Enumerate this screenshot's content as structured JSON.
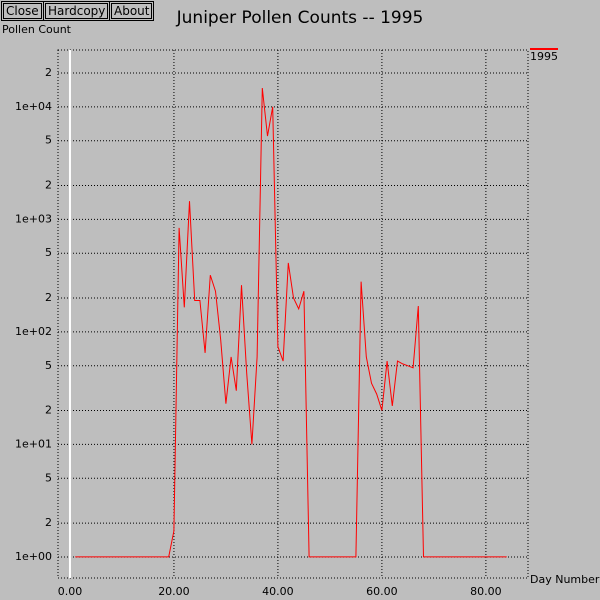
{
  "buttons": [
    "Close",
    "Hardcopy",
    "About"
  ],
  "chart_data": {
    "type": "line",
    "title": "Juniper Pollen Counts -- 1995",
    "y_label": "Pollen Count",
    "x_label": "Day Number",
    "x": [
      1,
      19,
      20,
      21,
      22,
      23,
      24,
      25,
      26,
      27,
      28,
      29,
      30,
      31,
      32,
      33,
      34,
      35,
      36,
      37,
      38,
      39,
      40,
      41,
      42,
      43,
      44,
      45,
      46,
      55,
      56,
      57,
      58,
      59,
      60,
      61,
      62,
      63,
      64,
      65,
      66,
      67,
      68,
      84
    ],
    "series": [
      {
        "name": "1995",
        "color": "#ff0000",
        "values": [
          1,
          1,
          1.7,
          840,
          165,
          1450,
          190,
          190,
          65,
          320,
          230,
          85,
          23,
          60,
          30,
          260,
          43,
          10,
          60,
          14700,
          5500,
          10000,
          74,
          55,
          410,
          200,
          160,
          230,
          1,
          1,
          280,
          60,
          35,
          28,
          20,
          55,
          22,
          55,
          52,
          50,
          48,
          170,
          1,
          1
        ]
      }
    ],
    "xlim": [
      -2.3,
      88.1
    ],
    "ylim": [
      0.65,
      32000
    ],
    "ylog": true,
    "grid": true,
    "legend": "top-right",
    "xticks": [
      {
        "value": 0,
        "label": "0.00"
      },
      {
        "value": 20,
        "label": "20.00"
      },
      {
        "value": 40,
        "label": "40.00"
      },
      {
        "value": 60,
        "label": "60.00"
      },
      {
        "value": 80,
        "label": "80.00"
      }
    ],
    "yticks": [
      {
        "value": 1,
        "label": "1e+00"
      },
      2,
      5,
      {
        "value": 10,
        "label": "1e+01"
      },
      {
        "value": 20,
        "label": "2"
      },
      {
        "value": 50,
        "label": "5"
      },
      {
        "value": 100,
        "label": "1e+02"
      },
      {
        "value": 200,
        "label": "2"
      },
      {
        "value": 500,
        "label": "5"
      },
      {
        "value": 1000,
        "label": "1e+03"
      },
      {
        "value": 2000,
        "label": "2"
      },
      {
        "value": 5000,
        "label": "5"
      },
      {
        "value": 10000,
        "label": "1e+04"
      },
      {
        "value": 20000,
        "label": "2"
      }
    ]
  }
}
